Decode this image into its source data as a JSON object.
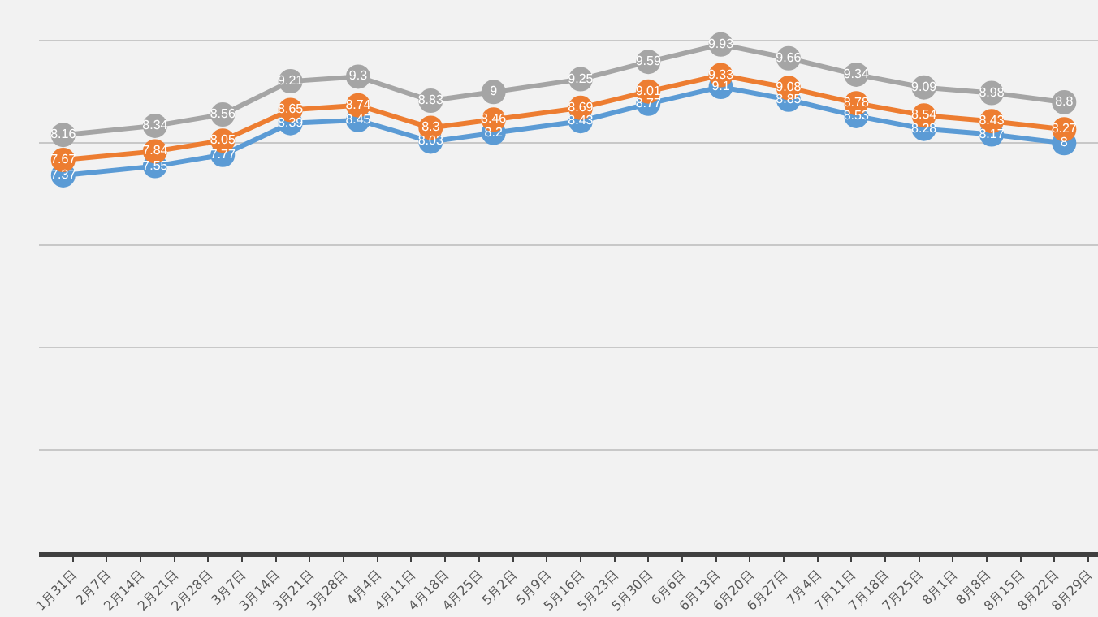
{
  "chart_data": {
    "type": "line",
    "x": [
      "--01-29",
      "--02-17",
      "--03-03",
      "--03-17",
      "--03-31",
      "--04-15",
      "--04-28",
      "--05-16",
      "--05-30",
      "--06-14",
      "--06-28",
      "--07-12",
      "--07-26",
      "--08-09",
      "--08-24"
    ],
    "series": [
      {
        "color": "#5b9bd5",
        "values": [
          7.37,
          7.55,
          7.77,
          8.39,
          8.45,
          8.03,
          8.2,
          8.43,
          8.77,
          9.1,
          8.85,
          8.53,
          8.28,
          8.17,
          8
        ]
      },
      {
        "color": "#ed7d31",
        "values": [
          7.67,
          7.84,
          8.05,
          8.65,
          8.74,
          8.3,
          8.46,
          8.69,
          9.01,
          9.33,
          9.08,
          8.78,
          8.54,
          8.43,
          8.27
        ]
      },
      {
        "color": "#a5a5a5",
        "values": [
          8.16,
          8.34,
          8.56,
          9.21,
          9.3,
          8.83,
          9,
          9.25,
          9.59,
          9.93,
          9.66,
          9.34,
          9.09,
          8.98,
          8.8
        ]
      }
    ],
    "xlim": [
      "--01-24",
      "--08-31"
    ],
    "xticks": [
      {
        "value": "--01-31",
        "label": "1月31日"
      },
      {
        "value": "--02-07",
        "label": "2月7日"
      },
      {
        "value": "--02-14",
        "label": "2月14日"
      },
      {
        "value": "--02-21",
        "label": "2月21日"
      },
      {
        "value": "--02-28",
        "label": "2月28日"
      },
      {
        "value": "--03-07",
        "label": "3月7日"
      },
      {
        "value": "--03-14",
        "label": "3月14日"
      },
      {
        "value": "--03-21",
        "label": "3月21日"
      },
      {
        "value": "--03-28",
        "label": "3月28日"
      },
      {
        "value": "--04-04",
        "label": "4月4日"
      },
      {
        "value": "--04-11",
        "label": "4月11日"
      },
      {
        "value": "--04-18",
        "label": "4月18日"
      },
      {
        "value": "--04-25",
        "label": "4月25日"
      },
      {
        "value": "--05-02",
        "label": "5月2日"
      },
      {
        "value": "--05-09",
        "label": "5月9日"
      },
      {
        "value": "--05-16",
        "label": "5月16日"
      },
      {
        "value": "--05-23",
        "label": "5月23日"
      },
      {
        "value": "--05-30",
        "label": "5月30日"
      },
      {
        "value": "--06-06",
        "label": "6月6日"
      },
      {
        "value": "--06-13",
        "label": "6月13日"
      },
      {
        "value": "--06-20",
        "label": "6月20日"
      },
      {
        "value": "--06-27",
        "label": "6月27日"
      },
      {
        "value": "--07-04",
        "label": "7月4日"
      },
      {
        "value": "--07-11",
        "label": "7月11日"
      },
      {
        "value": "--07-18",
        "label": "7月18日"
      },
      {
        "value": "--07-25",
        "label": "7月25日"
      },
      {
        "value": "--08-01",
        "label": "8月1日"
      },
      {
        "value": "--08-08",
        "label": "8月8日"
      },
      {
        "value": "--08-15",
        "label": "8月15日"
      },
      {
        "value": "--08-22",
        "label": "8月22日"
      },
      {
        "value": "--08-29",
        "label": "8月29日"
      }
    ],
    "ylim": [
      0,
      10.8
    ],
    "yticks": [
      {
        "value": 0,
        "label": null
      },
      {
        "value": 2,
        "label": null
      },
      {
        "value": 4,
        "label": null
      },
      {
        "value": 6,
        "label": null
      },
      {
        "value": 8,
        "label": null
      },
      {
        "value": 10,
        "label": null
      }
    ],
    "tick_labels": "x",
    "grid": "y",
    "marker": "circle",
    "line_style": "solid",
    "data_labels": true
  }
}
